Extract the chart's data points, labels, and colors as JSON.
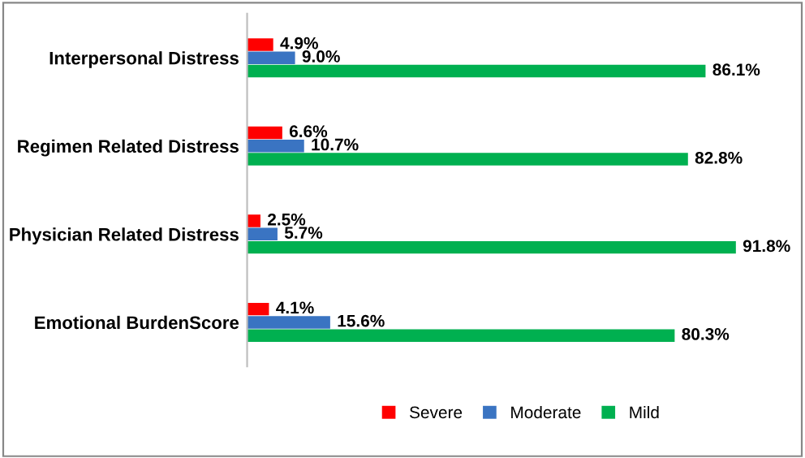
{
  "chart_data": {
    "type": "bar",
    "orientation": "horizontal",
    "categories": [
      "Interpersonal Distress",
      "Regimen Related Distress",
      "Physician Related Distress",
      "Emotional BurdenScore"
    ],
    "series": [
      {
        "name": "Severe",
        "color": "#ff0000",
        "values": [
          4.9,
          6.6,
          2.5,
          4.1
        ],
        "value_labels": [
          "4.9%",
          "6.6%",
          "2.5%",
          "4.1%"
        ]
      },
      {
        "name": "Moderate",
        "color": "#3a74c2",
        "values": [
          9.0,
          10.7,
          5.7,
          15.6
        ],
        "value_labels": [
          "9.0%",
          "10.7%",
          "5.7%",
          "15.6%"
        ]
      },
      {
        "name": "Mild",
        "color": "#00b050",
        "values": [
          86.1,
          82.8,
          91.8,
          80.3
        ],
        "value_labels": [
          "86.1%",
          "82.8%",
          "91.8%",
          "80.3%"
        ]
      }
    ],
    "legend": "bottom",
    "grid": false
  }
}
